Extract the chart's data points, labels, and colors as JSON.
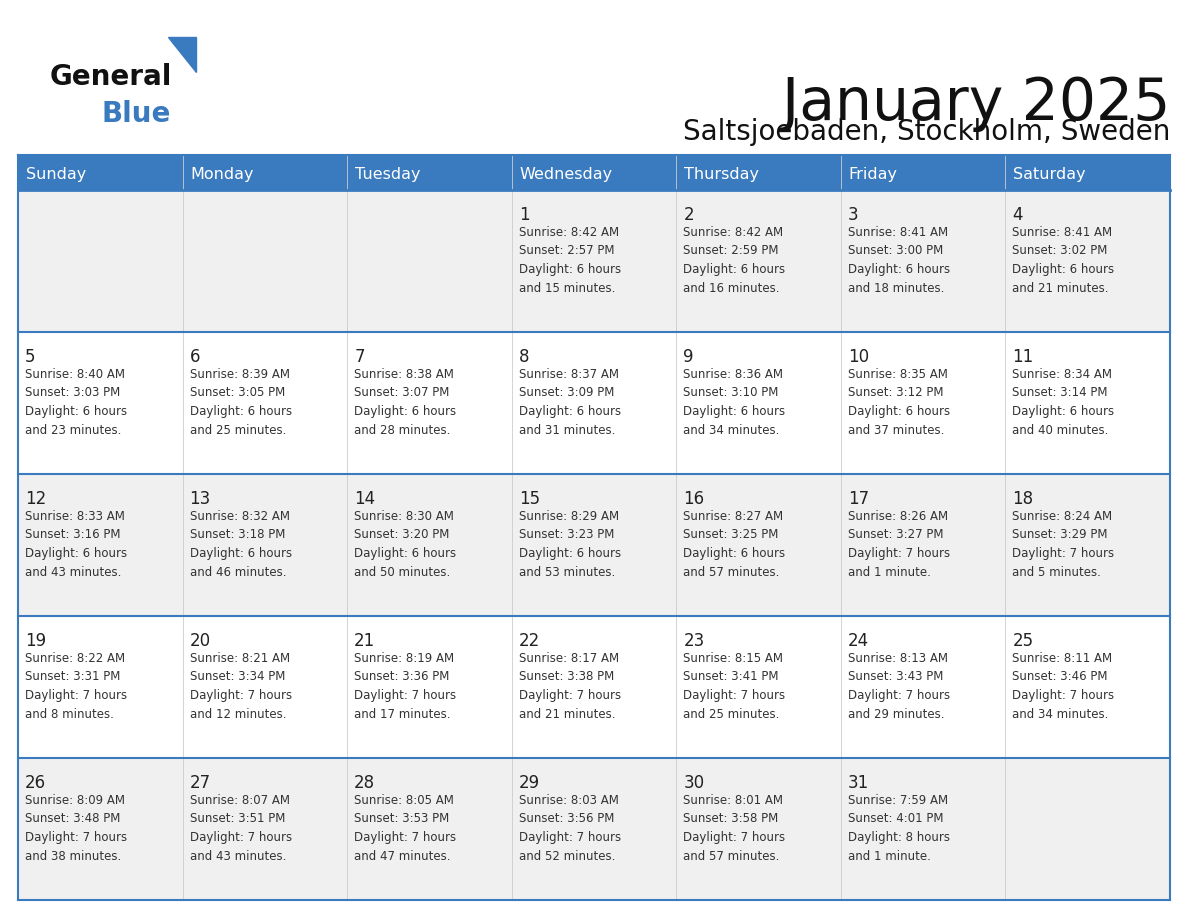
{
  "title": "January 2025",
  "subtitle": "Saltsjoebaden, Stockholm, Sweden",
  "days_of_week": [
    "Sunday",
    "Monday",
    "Tuesday",
    "Wednesday",
    "Thursday",
    "Friday",
    "Saturday"
  ],
  "header_bg": "#3a7abf",
  "header_text": "#ffffff",
  "row_bg_odd": "#f0f0f0",
  "row_bg_even": "#ffffff",
  "cell_text_color": "#333333",
  "day_num_color": "#222222",
  "divider_color": "#3a7abf",
  "grid_line_color": "#cccccc",
  "title_color": "#111111",
  "subtitle_color": "#111111",
  "logo_general_color": "#111111",
  "logo_blue_color": "#3a7abf",
  "weeks": [
    [
      {
        "day": 0,
        "info": ""
      },
      {
        "day": 0,
        "info": ""
      },
      {
        "day": 0,
        "info": ""
      },
      {
        "day": 1,
        "info": "Sunrise: 8:42 AM\nSunset: 2:57 PM\nDaylight: 6 hours\nand 15 minutes."
      },
      {
        "day": 2,
        "info": "Sunrise: 8:42 AM\nSunset: 2:59 PM\nDaylight: 6 hours\nand 16 minutes."
      },
      {
        "day": 3,
        "info": "Sunrise: 8:41 AM\nSunset: 3:00 PM\nDaylight: 6 hours\nand 18 minutes."
      },
      {
        "day": 4,
        "info": "Sunrise: 8:41 AM\nSunset: 3:02 PM\nDaylight: 6 hours\nand 21 minutes."
      }
    ],
    [
      {
        "day": 5,
        "info": "Sunrise: 8:40 AM\nSunset: 3:03 PM\nDaylight: 6 hours\nand 23 minutes."
      },
      {
        "day": 6,
        "info": "Sunrise: 8:39 AM\nSunset: 3:05 PM\nDaylight: 6 hours\nand 25 minutes."
      },
      {
        "day": 7,
        "info": "Sunrise: 8:38 AM\nSunset: 3:07 PM\nDaylight: 6 hours\nand 28 minutes."
      },
      {
        "day": 8,
        "info": "Sunrise: 8:37 AM\nSunset: 3:09 PM\nDaylight: 6 hours\nand 31 minutes."
      },
      {
        "day": 9,
        "info": "Sunrise: 8:36 AM\nSunset: 3:10 PM\nDaylight: 6 hours\nand 34 minutes."
      },
      {
        "day": 10,
        "info": "Sunrise: 8:35 AM\nSunset: 3:12 PM\nDaylight: 6 hours\nand 37 minutes."
      },
      {
        "day": 11,
        "info": "Sunrise: 8:34 AM\nSunset: 3:14 PM\nDaylight: 6 hours\nand 40 minutes."
      }
    ],
    [
      {
        "day": 12,
        "info": "Sunrise: 8:33 AM\nSunset: 3:16 PM\nDaylight: 6 hours\nand 43 minutes."
      },
      {
        "day": 13,
        "info": "Sunrise: 8:32 AM\nSunset: 3:18 PM\nDaylight: 6 hours\nand 46 minutes."
      },
      {
        "day": 14,
        "info": "Sunrise: 8:30 AM\nSunset: 3:20 PM\nDaylight: 6 hours\nand 50 minutes."
      },
      {
        "day": 15,
        "info": "Sunrise: 8:29 AM\nSunset: 3:23 PM\nDaylight: 6 hours\nand 53 minutes."
      },
      {
        "day": 16,
        "info": "Sunrise: 8:27 AM\nSunset: 3:25 PM\nDaylight: 6 hours\nand 57 minutes."
      },
      {
        "day": 17,
        "info": "Sunrise: 8:26 AM\nSunset: 3:27 PM\nDaylight: 7 hours\nand 1 minute."
      },
      {
        "day": 18,
        "info": "Sunrise: 8:24 AM\nSunset: 3:29 PM\nDaylight: 7 hours\nand 5 minutes."
      }
    ],
    [
      {
        "day": 19,
        "info": "Sunrise: 8:22 AM\nSunset: 3:31 PM\nDaylight: 7 hours\nand 8 minutes."
      },
      {
        "day": 20,
        "info": "Sunrise: 8:21 AM\nSunset: 3:34 PM\nDaylight: 7 hours\nand 12 minutes."
      },
      {
        "day": 21,
        "info": "Sunrise: 8:19 AM\nSunset: 3:36 PM\nDaylight: 7 hours\nand 17 minutes."
      },
      {
        "day": 22,
        "info": "Sunrise: 8:17 AM\nSunset: 3:38 PM\nDaylight: 7 hours\nand 21 minutes."
      },
      {
        "day": 23,
        "info": "Sunrise: 8:15 AM\nSunset: 3:41 PM\nDaylight: 7 hours\nand 25 minutes."
      },
      {
        "day": 24,
        "info": "Sunrise: 8:13 AM\nSunset: 3:43 PM\nDaylight: 7 hours\nand 29 minutes."
      },
      {
        "day": 25,
        "info": "Sunrise: 8:11 AM\nSunset: 3:46 PM\nDaylight: 7 hours\nand 34 minutes."
      }
    ],
    [
      {
        "day": 26,
        "info": "Sunrise: 8:09 AM\nSunset: 3:48 PM\nDaylight: 7 hours\nand 38 minutes."
      },
      {
        "day": 27,
        "info": "Sunrise: 8:07 AM\nSunset: 3:51 PM\nDaylight: 7 hours\nand 43 minutes."
      },
      {
        "day": 28,
        "info": "Sunrise: 8:05 AM\nSunset: 3:53 PM\nDaylight: 7 hours\nand 47 minutes."
      },
      {
        "day": 29,
        "info": "Sunrise: 8:03 AM\nSunset: 3:56 PM\nDaylight: 7 hours\nand 52 minutes."
      },
      {
        "day": 30,
        "info": "Sunrise: 8:01 AM\nSunset: 3:58 PM\nDaylight: 7 hours\nand 57 minutes."
      },
      {
        "day": 31,
        "info": "Sunrise: 7:59 AM\nSunset: 4:01 PM\nDaylight: 8 hours\nand 1 minute."
      },
      {
        "day": 0,
        "info": ""
      }
    ]
  ]
}
